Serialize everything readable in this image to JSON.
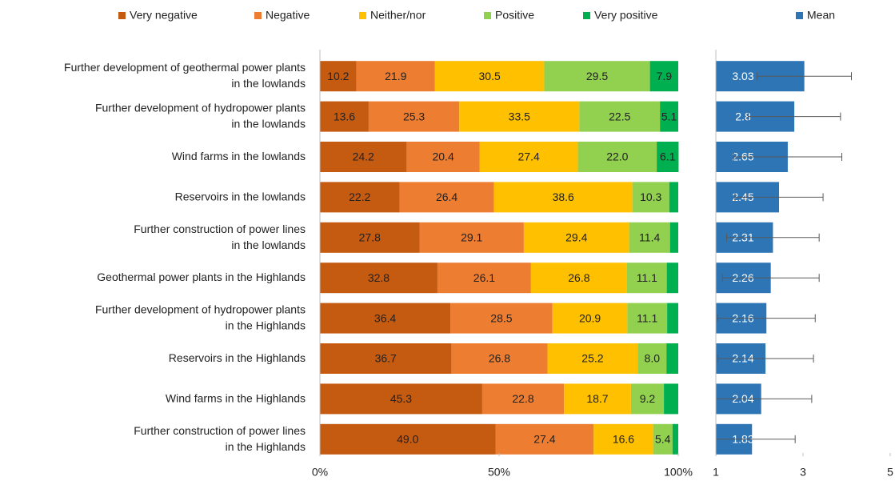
{
  "chart_data": [
    {
      "type": "stacked_bar_horizontal",
      "categories": [
        "Further development of geothermal power plants\nin the lowlands",
        "Further development of hydropower plants\nin the lowlands",
        "Wind farms in the lowlands",
        "Reservoirs in the lowlands",
        "Further construction of power lines\nin the lowlands",
        "Geothermal power plants in the Highlands",
        "Further development of hydropower plants\nin the Highlands",
        "Reservoirs in the Highlands",
        "Wind farms in the Highlands",
        "Further construction of power lines\nin the Highlands"
      ],
      "series": [
        {
          "name": "Very negative",
          "color": "#c55a11",
          "values": [
            10.2,
            13.6,
            24.2,
            22.2,
            27.8,
            32.8,
            36.4,
            36.7,
            45.3,
            49.0
          ],
          "value_labels": [
            "10.2",
            "13.6",
            "24.2",
            "22.2",
            "27.8",
            "32.8",
            "36.4",
            "36.7",
            "45.3",
            "49.0"
          ]
        },
        {
          "name": "Negative",
          "color": "#ed7d31",
          "values": [
            21.9,
            25.3,
            20.4,
            26.4,
            29.1,
            26.1,
            28.5,
            26.8,
            22.8,
            27.4
          ],
          "value_labels": [
            "21.9",
            "25.3",
            "20.4",
            "26.4",
            "29.1",
            "26.1",
            "28.5",
            "26.8",
            "22.8",
            "27.4"
          ]
        },
        {
          "name": "Neither/nor",
          "color": "#ffc000",
          "values": [
            30.5,
            33.5,
            27.4,
            38.6,
            29.4,
            26.8,
            20.9,
            25.2,
            18.7,
            16.6
          ],
          "value_labels": [
            "30.5",
            "33.5",
            "27.4",
            "38.6",
            "29.4",
            "26.8",
            "20.9",
            "25.2",
            "18.7",
            "16.6"
          ]
        },
        {
          "name": "Positive",
          "color": "#92d050",
          "values": [
            29.5,
            22.5,
            22.0,
            10.3,
            11.4,
            11.1,
            11.1,
            8.0,
            9.2,
            5.4
          ],
          "value_labels": [
            "29.5",
            "22.5",
            "22.0",
            "10.3",
            "11.4",
            "11.1",
            "11.1",
            "8.0",
            "9.2",
            "5.4"
          ]
        },
        {
          "name": "Very positive",
          "color": "#00b050",
          "values": [
            7.9,
            5.1,
            6.1,
            2.5,
            2.3,
            3.2,
            3.1,
            3.3,
            4.0,
            1.6
          ],
          "value_labels": [
            "7.9",
            "5.1",
            "6.1",
            null,
            null,
            null,
            null,
            null,
            null,
            null
          ]
        }
      ],
      "xlim": [
        0,
        100
      ],
      "xticks": [
        {
          "value": 0,
          "label": "0%"
        },
        {
          "value": 50,
          "label": "50%"
        },
        {
          "value": 100,
          "label": "100%"
        }
      ]
    },
    {
      "type": "bar_horizontal",
      "series_name": "Mean",
      "color": "#2e75b6",
      "values": [
        3.03,
        2.8,
        2.65,
        2.45,
        2.31,
        2.26,
        2.16,
        2.14,
        2.04,
        1.83
      ],
      "errors": [
        1.08,
        1.06,
        1.24,
        1.01,
        1.06,
        1.11,
        1.12,
        1.1,
        1.16,
        0.99
      ],
      "xlim": [
        1,
        5
      ],
      "xticks": [
        1,
        3,
        5
      ]
    }
  ]
}
